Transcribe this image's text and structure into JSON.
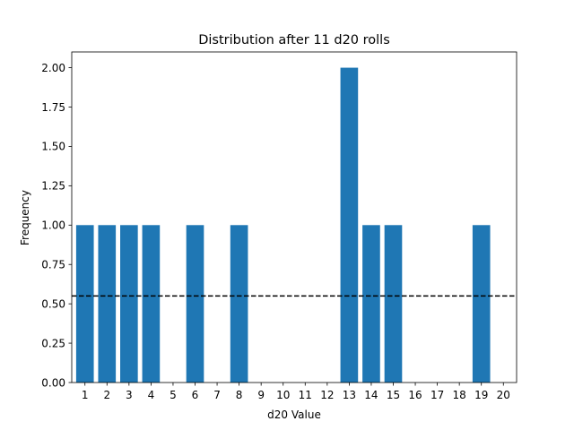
{
  "chart_data": {
    "type": "bar",
    "title": "Distribution after 11 d20 rolls",
    "xlabel": "d20 Value",
    "ylabel": "Frequency",
    "categories": [
      "1",
      "2",
      "3",
      "4",
      "5",
      "6",
      "7",
      "8",
      "9",
      "10",
      "11",
      "12",
      "13",
      "14",
      "15",
      "16",
      "17",
      "18",
      "19",
      "20"
    ],
    "values": [
      1,
      1,
      1,
      1,
      0,
      1,
      0,
      1,
      0,
      0,
      0,
      0,
      2,
      1,
      1,
      0,
      0,
      0,
      1,
      0
    ],
    "reference_line": {
      "value": 0.55,
      "style": "dashed",
      "color": "#000000"
    },
    "ylim": [
      0,
      2.1
    ],
    "yticks": [
      "0.00",
      "0.25",
      "0.50",
      "0.75",
      "1.00",
      "1.25",
      "1.50",
      "1.75",
      "2.00"
    ],
    "bar_color": "#1f77b4",
    "grid": false
  }
}
